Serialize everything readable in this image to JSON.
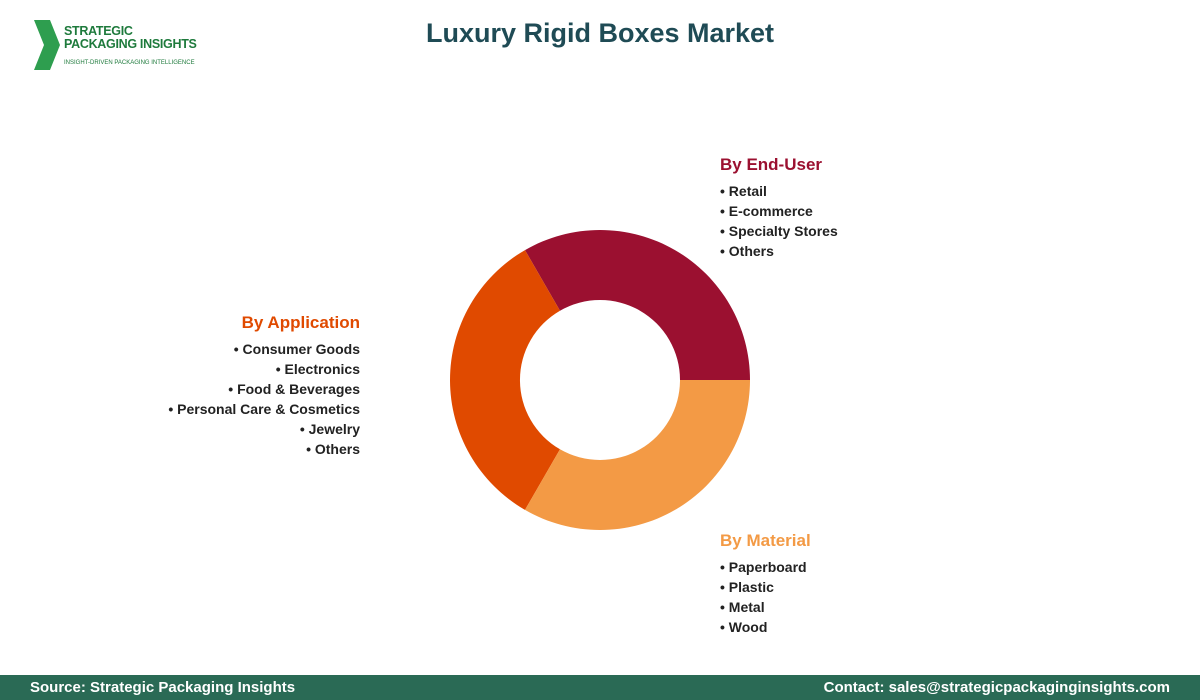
{
  "logo": {
    "line1": "STRATEGIC",
    "line2": "PACKAGING INSIGHTS",
    "tagline": "INSIGHT-DRIVEN PACKAGING INTELLIGENCE"
  },
  "title": "Luxury Rigid Boxes Market",
  "segments": [
    {
      "title": "By End-User",
      "items": [
        "Retail",
        "E-commerce",
        "Specialty Stores",
        "Others"
      ]
    },
    {
      "title": "By Application",
      "items": [
        "Consumer Goods",
        "Electronics",
        "Food & Beverages",
        "Personal Care & Cosmetics",
        "Jewelry",
        "Others"
      ]
    },
    {
      "title": "By Material",
      "items": [
        "Paperboard",
        "Plastic",
        "Metal",
        "Wood"
      ]
    }
  ],
  "footer": {
    "source": "Source: Strategic Packaging Insights",
    "contact": "Contact: sales@strategicpackaginginsights.com"
  }
}
